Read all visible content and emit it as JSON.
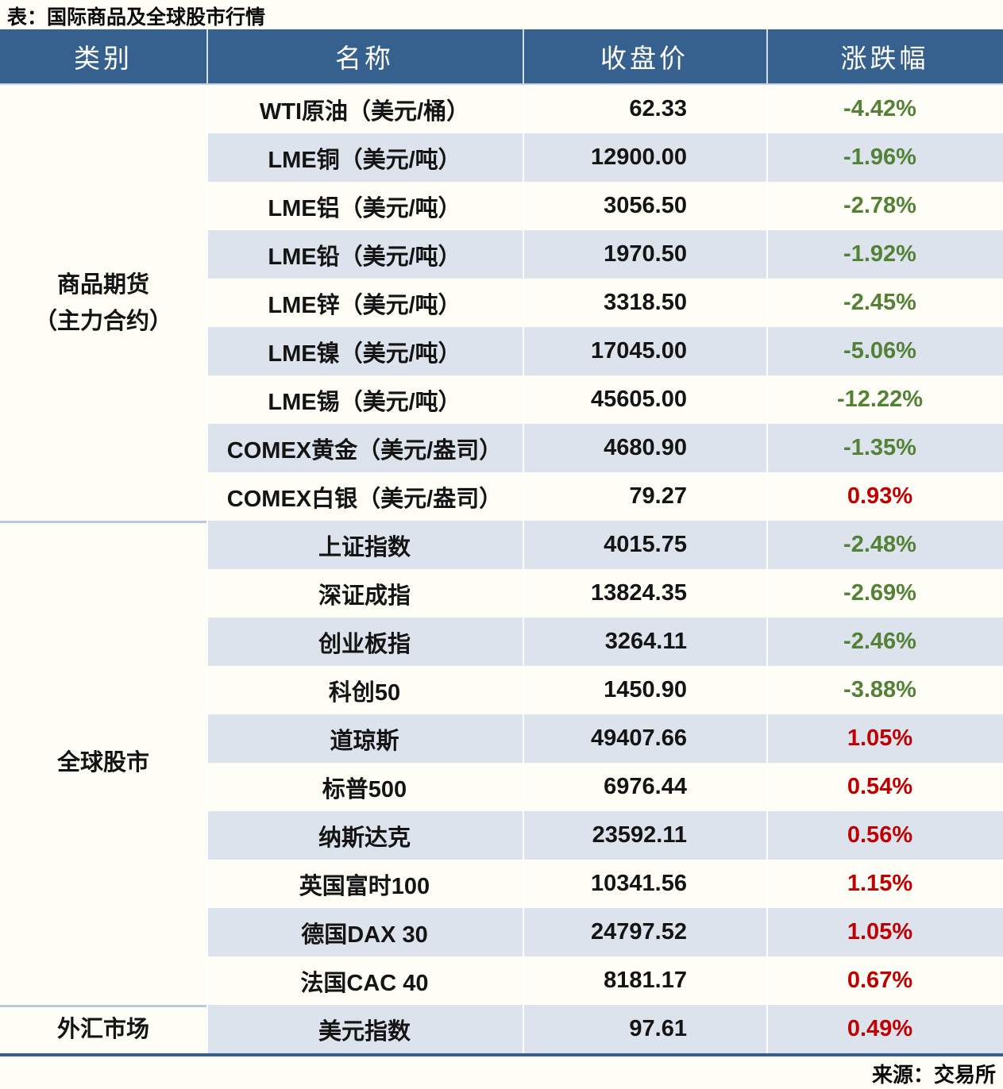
{
  "page": {
    "title": "表：国际商品及全球股市行情",
    "source": "来源：交易所"
  },
  "colors": {
    "header_bg": "#36618E",
    "alt_row_bg": "#DCE3ED",
    "negative_green": "#538135",
    "positive_red": "#C00000",
    "group_separator": "#B9C9DB",
    "bottom_rule": "#36618E",
    "page_bg": "#FFFEF6"
  },
  "chart_data": {
    "type": "table",
    "title": "表：国际商品及全球股市行情",
    "source": "来源：交易所",
    "columns": [
      "类别",
      "名称",
      "收盘价",
      "涨跌幅"
    ],
    "groups": [
      {
        "category": "商品期货",
        "category_line2": "（主力合约）",
        "rows": [
          {
            "name": "WTI原油（美元/桶）",
            "close": "62.33",
            "change": "-4.42%"
          },
          {
            "name": "LME铜（美元/吨）",
            "close": "12900.00",
            "change": "-1.96%"
          },
          {
            "name": "LME铝（美元/吨）",
            "close": "3056.50",
            "change": "-2.78%"
          },
          {
            "name": "LME铅（美元/吨）",
            "close": "1970.50",
            "change": "-1.92%"
          },
          {
            "name": "LME锌（美元/吨）",
            "close": "3318.50",
            "change": "-2.45%"
          },
          {
            "name": "LME镍（美元/吨）",
            "close": "17045.00",
            "change": "-5.06%"
          },
          {
            "name": "LME锡（美元/吨）",
            "close": "45605.00",
            "change": "-12.22%"
          },
          {
            "name": "COMEX黄金（美元/盎司）",
            "close": "4680.90",
            "change": "-1.35%"
          },
          {
            "name": "COMEX白银（美元/盎司）",
            "close": "79.27",
            "change": "0.93%"
          }
        ]
      },
      {
        "category": "全球股市",
        "category_line2": "",
        "rows": [
          {
            "name": "上证指数",
            "close": "4015.75",
            "change": "-2.48%"
          },
          {
            "name": "深证成指",
            "close": "13824.35",
            "change": "-2.69%"
          },
          {
            "name": "创业板指",
            "close": "3264.11",
            "change": "-2.46%"
          },
          {
            "name": "科创50",
            "close": "1450.90",
            "change": "-3.88%"
          },
          {
            "name": "道琼斯",
            "close": "49407.66",
            "change": "1.05%"
          },
          {
            "name": "标普500",
            "close": "6976.44",
            "change": "0.54%"
          },
          {
            "name": "纳斯达克",
            "close": "23592.11",
            "change": "0.56%"
          },
          {
            "name": "英国富时100",
            "close": "10341.56",
            "change": "1.15%"
          },
          {
            "name": "德国DAX 30",
            "close": "24797.52",
            "change": "1.05%"
          },
          {
            "name": "法国CAC 40",
            "close": "8181.17",
            "change": "0.67%"
          }
        ]
      },
      {
        "category": "外汇市场",
        "category_line2": "",
        "rows": [
          {
            "name": "美元指数",
            "close": "97.61",
            "change": "0.49%"
          }
        ]
      }
    ]
  }
}
